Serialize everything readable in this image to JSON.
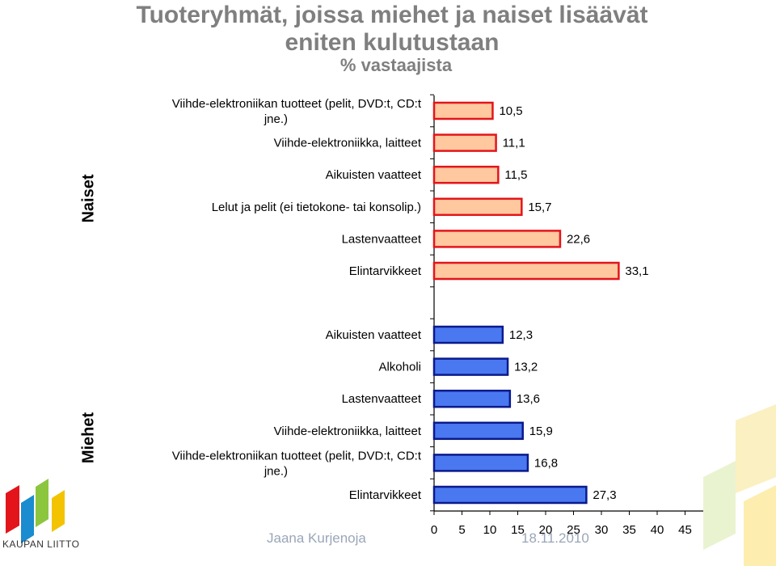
{
  "title": "Tuoteryhmät, joissa miehet ja naiset lisäävät eniten kulutustaan",
  "subtitle": "% vastaajista",
  "footer": {
    "author": "Jaana Kurjenoja",
    "date": "18.11.2010"
  },
  "logo": {
    "text": "KAUPAN LIITTO"
  },
  "chart_data": {
    "type": "bar",
    "orientation": "horizontal",
    "title": "Tuoteryhmät, joissa miehet ja naiset lisäävät eniten kulutustaan",
    "subtitle": "% vastaajista",
    "xlim": [
      0,
      50
    ],
    "xticks": [
      0,
      5,
      10,
      15,
      20,
      25,
      30,
      35,
      40,
      45,
      50
    ],
    "groups": [
      {
        "name": "Naiset",
        "color": "#ffc89e",
        "border": "#e4141b",
        "categories": [
          "Viihde-elektroniikan tuotteet (pelit, DVD:t, CD:t jne.)",
          "Viihde-elektroniikka, laitteet",
          "Aikuisten vaatteet",
          "Lelut ja pelit (ei tietokone- tai konsolip.)",
          "Lastenvaatteet",
          "Elintarvikkeet"
        ],
        "values": [
          10.5,
          11.1,
          11.5,
          15.7,
          22.6,
          33.1
        ],
        "value_labels": [
          "10,5",
          "11,1",
          "11,5",
          "15,7",
          "22,6",
          "33,1"
        ]
      },
      {
        "name": "Miehet",
        "color": "#4a78f0",
        "border": "#0a1a8c",
        "categories": [
          "Aikuisten vaatteet",
          "Alkoholi",
          "Lastenvaatteet",
          "Viihde-elektroniikka, laitteet",
          "Viihde-elektroniikan tuotteet (pelit, DVD:t, CD:t jne.)",
          "Elintarvikkeet"
        ],
        "values": [
          12.3,
          13.2,
          13.6,
          15.9,
          16.8,
          27.3
        ],
        "value_labels": [
          "12,3",
          "13,2",
          "13,6",
          "15,9",
          "16,8",
          "27,3"
        ]
      }
    ]
  }
}
